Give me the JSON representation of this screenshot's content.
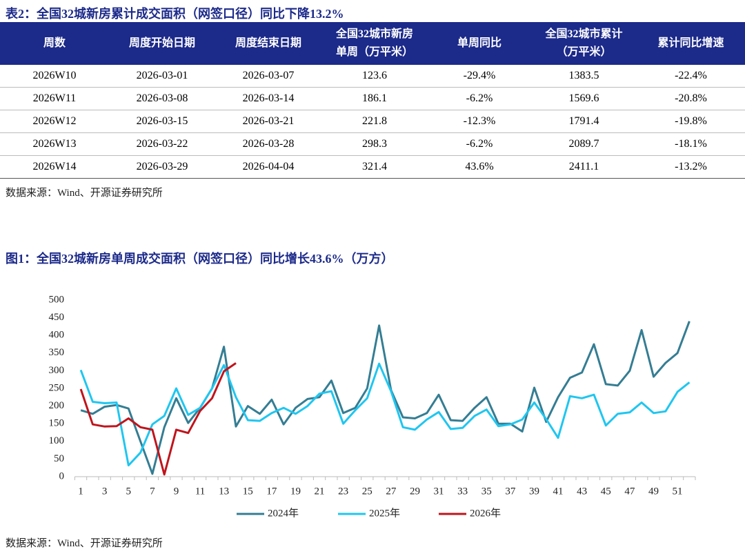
{
  "table": {
    "title": "表2：全国32城新房累计成交面积（网签口径）同比下降13.2%",
    "headers": [
      [
        "周数"
      ],
      [
        "周度开始日期"
      ],
      [
        "周度结束日期"
      ],
      [
        "全国32城市新房",
        "单周（万平米）"
      ],
      [
        "单周同比"
      ],
      [
        "全国32城市累计",
        "（万平米）"
      ],
      [
        "累计同比增速"
      ]
    ],
    "rows": [
      [
        "2026W10",
        "2026-03-01",
        "2026-03-07",
        "123.6",
        "-29.4%",
        "1383.5",
        "-22.4%"
      ],
      [
        "2026W11",
        "2026-03-08",
        "2026-03-14",
        "186.1",
        "-6.2%",
        "1569.6",
        "-20.8%"
      ],
      [
        "2026W12",
        "2026-03-15",
        "2026-03-21",
        "221.8",
        "-12.3%",
        "1791.4",
        "-19.8%"
      ],
      [
        "2026W13",
        "2026-03-22",
        "2026-03-28",
        "298.3",
        "-6.2%",
        "2089.7",
        "-18.1%"
      ],
      [
        "2026W14",
        "2026-03-29",
        "2026-04-04",
        "321.4",
        "43.6%",
        "2411.1",
        "-13.2%"
      ]
    ],
    "source": "数据来源：Wind、开源证券研究所"
  },
  "chart_data": {
    "type": "line",
    "title": "图1：全国32城新房单周成交面积（网签口径）同比增长43.6%（万方）",
    "source": "数据来源：Wind、开源证券研究所",
    "categories": [
      1,
      null,
      3,
      null,
      5,
      null,
      7,
      null,
      9,
      null,
      11,
      null,
      13,
      null,
      15,
      null,
      17,
      null,
      19,
      null,
      21,
      null,
      23,
      null,
      25,
      null,
      27,
      null,
      29,
      null,
      31,
      null,
      33,
      null,
      35,
      null,
      37,
      null,
      39,
      null,
      41,
      null,
      43,
      null,
      45,
      null,
      47,
      null,
      49,
      null,
      51,
      null
    ],
    "ylim": [
      0,
      500
    ],
    "yticks": [
      0,
      50,
      100,
      150,
      200,
      250,
      300,
      350,
      400,
      450,
      500
    ],
    "grid": false,
    "legend": "bottom",
    "series": [
      {
        "name": "2024年",
        "color": "#347d93",
        "values": [
          188,
          178,
          198,
          203,
          193,
          100,
          8,
          140,
          222,
          152,
          195,
          250,
          368,
          142,
          200,
          178,
          218,
          148,
          195,
          220,
          225,
          272,
          180,
          195,
          250,
          428,
          245,
          168,
          165,
          180,
          232,
          160,
          158,
          195,
          225,
          150,
          150,
          128,
          252,
          155,
          225,
          280,
          295,
          375,
          262,
          258,
          300,
          415,
          283,
          322,
          350,
          440
        ]
      },
      {
        "name": "2025年",
        "color": "#1fc6f0",
        "values": [
          302,
          212,
          208,
          210,
          32,
          68,
          148,
          172,
          250,
          175,
          195,
          250,
          316,
          225,
          160,
          158,
          180,
          195,
          178,
          200,
          235,
          242,
          150,
          188,
          222,
          320,
          242,
          140,
          133,
          162,
          183,
          135,
          138,
          172,
          190,
          143,
          148,
          162,
          210,
          163,
          110,
          228,
          222,
          232,
          145,
          178,
          182,
          210,
          180,
          185,
          240,
          267
        ]
      },
      {
        "name": "2026年",
        "color": "#c0141c",
        "values": [
          248,
          148,
          142,
          143,
          165,
          140,
          133,
          6,
          133,
          123.6,
          186.1,
          221.8,
          298.3,
          321.4,
          null,
          null,
          null,
          null,
          null,
          null,
          null,
          null,
          null,
          null,
          null,
          null,
          null,
          null,
          null,
          null,
          null,
          null,
          null,
          null,
          null,
          null,
          null,
          null,
          null,
          null,
          null,
          null,
          null,
          null,
          null,
          null,
          null,
          null,
          null,
          null,
          null,
          null
        ]
      }
    ]
  }
}
